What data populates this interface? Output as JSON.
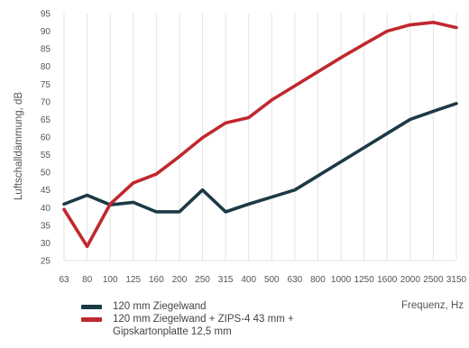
{
  "chart_data": {
    "type": "line",
    "xlabel": "Frequenz, Hz",
    "ylabel": "Luftschalldämmung, dB",
    "categories": [
      "63",
      "80",
      "100",
      "125",
      "160",
      "200",
      "250",
      "315",
      "400",
      "500",
      "630",
      "800",
      "1000",
      "1250",
      "1600",
      "2000",
      "2500",
      "3150"
    ],
    "ylim": [
      25,
      95
    ],
    "yticks": [
      25,
      30,
      35,
      40,
      45,
      50,
      55,
      60,
      65,
      70,
      75,
      80,
      85,
      90,
      95
    ],
    "grid": "vertical",
    "legend_position": "bottom-left",
    "series": [
      {
        "name": "120 mm Ziegelwand",
        "color": "#1c3a45",
        "values": [
          41,
          43.5,
          40.8,
          41.5,
          38.8,
          38.8,
          45,
          38.8,
          41,
          43,
          45,
          49,
          53,
          57,
          61,
          65,
          67.3,
          69.5
        ]
      },
      {
        "name": "120 mm Ziegelwand + ZIPS-4 43 mm + Gipskartonplatte 12,5 mm",
        "color": "#c0282e",
        "values": [
          39.5,
          29,
          41,
          47,
          49.5,
          54.5,
          59.8,
          64,
          65.5,
          70.5,
          74.5,
          78.5,
          82.5,
          86.3,
          90,
          91.8,
          92.5,
          91
        ]
      }
    ]
  }
}
